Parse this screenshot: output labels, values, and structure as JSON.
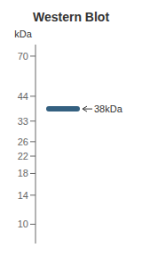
{
  "chart_data": {
    "type": "band",
    "title": "Western Blot",
    "y_label": "kDa",
    "log": "y",
    "ylim": [
      8,
      80
    ],
    "yticks": [
      10,
      14,
      18,
      22,
      26,
      33,
      44,
      70
    ],
    "values": [
      38
    ],
    "data_labels": true,
    "value_labels": [
      "38kDa"
    ],
    "color": "#1e4f72"
  }
}
